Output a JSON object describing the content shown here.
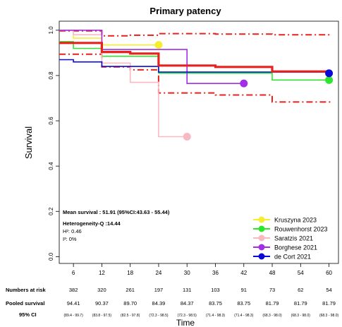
{
  "chart_data": {
    "type": "line",
    "title": "Primary patency",
    "xlabel": "Time",
    "ylabel": "Survival",
    "xlim": [
      3,
      62
    ],
    "ylim": [
      -0.03,
      1.04
    ],
    "xticks": [
      "6",
      "12",
      "18",
      "24",
      "30",
      "36",
      "42",
      "48",
      "54",
      "60"
    ],
    "yticks": [
      "0.0",
      "0.2",
      "0.4",
      "0.6",
      "0.8",
      "1.0"
    ],
    "x": [
      6,
      12,
      18,
      24,
      30,
      36,
      42,
      48,
      54,
      60
    ],
    "pooled": {
      "estimate": [
        0.944,
        0.904,
        0.897,
        0.844,
        0.844,
        0.838,
        0.838,
        0.818,
        0.818,
        0.818
      ],
      "ci_upper": [
        0.997,
        0.975,
        0.978,
        0.985,
        0.985,
        0.983,
        0.983,
        0.98,
        0.98,
        0.98
      ],
      "ci_lower": [
        0.894,
        0.838,
        0.825,
        0.723,
        0.723,
        0.714,
        0.714,
        0.683,
        0.683,
        0.683
      ],
      "color": "#e8201e"
    },
    "series": [
      {
        "name": "Kruszyna 2023",
        "color": "#f5ee2f",
        "x": [
          3,
          6,
          12,
          24
        ],
        "values": [
          1.0,
          0.965,
          0.935,
          0.935
        ],
        "end": [
          24,
          0.935
        ]
      },
      {
        "name": "Rouwenhorst 2023",
        "color": "#2ee62e",
        "x": [
          3,
          6,
          12,
          24,
          42,
          48,
          60
        ],
        "values": [
          0.95,
          0.92,
          0.885,
          0.81,
          0.81,
          0.78,
          0.78
        ],
        "end": [
          60,
          0.78
        ]
      },
      {
        "name": "Saratzis 2021",
        "color": "#f9b9c3",
        "x": [
          3,
          6,
          12,
          18,
          24,
          30
        ],
        "values": [
          1.0,
          0.98,
          0.855,
          0.77,
          0.53,
          0.53
        ],
        "end": [
          30,
          0.53
        ]
      },
      {
        "name": "Borghese 2021",
        "color": "#a42ee6",
        "x": [
          3,
          6,
          12,
          24,
          30,
          42
        ],
        "values": [
          1.0,
          1.0,
          0.915,
          0.915,
          0.765,
          0.765
        ],
        "end": [
          42,
          0.765
        ]
      },
      {
        "name": "de Cort 2021",
        "color": "#0a0ad8",
        "x": [
          3,
          6,
          12,
          18,
          24,
          60
        ],
        "values": [
          0.87,
          0.86,
          0.84,
          0.84,
          0.815,
          0.815
        ],
        "end": [
          60,
          0.81
        ]
      }
    ],
    "legend_position": "bottom-right",
    "stats": {
      "mean_survival": "Mean survival : 51.91 (95%CI:43.63 - 55.44)",
      "heterogeneity": "Heterogeneity-Q :14.44",
      "h2": "H²: 0.46",
      "i2": "I²: 0%"
    },
    "table": {
      "numbers_at_risk_label": "Numbers at risk",
      "numbers_at_risk": [
        "382",
        "320",
        "261",
        "197",
        "131",
        "103",
        "91",
        "73",
        "62",
        "54"
      ],
      "pooled_survival_label": "Pooled survival",
      "pooled_survival": [
        "94.41",
        "90.37",
        "89.70",
        "84.39",
        "84.37",
        "83.75",
        "83.75",
        "81.79",
        "81.79",
        "81.79"
      ],
      "ci_label": "95% CI",
      "ci": [
        "(89.4 - 99.7)",
        "(83.8 - 97.5)",
        "(82.5 - 97.8)",
        "(72.3 - 98.5)",
        "(72.3 - 98.5)",
        "(71.4 - 98.3)",
        "(71.4 - 98.3)",
        "(68.3 - 98.0)",
        "(68.3 - 98.0)",
        "(68.3 - 98.0)"
      ]
    }
  }
}
